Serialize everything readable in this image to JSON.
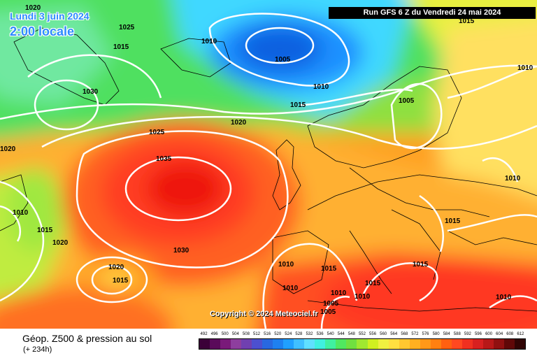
{
  "header": {
    "date_line1": "Lundi 3 juin 2024",
    "date_line2": "2:00 locale",
    "run": "Run GFS 6 Z du Vendredi 24 mai 2024"
  },
  "copyright": "Copyright © 2024 Meteociel.fr",
  "footer": {
    "title": "Géop. Z500 & pression au sol",
    "subtitle": "(+ 234h)"
  },
  "isobar_labels": [
    "1020",
    "1025",
    "1015",
    "1010",
    "1005",
    "1010",
    "1015",
    "1005",
    "1010",
    "1030",
    "1020",
    "1025",
    "1035",
    "1020",
    "1010",
    "1015",
    "1020",
    "1030",
    "1020",
    "1015",
    "1010",
    "1015",
    "1010",
    "1015",
    "1010",
    "1005",
    "1015",
    "1005",
    "1010",
    "1010",
    "1015",
    "1010",
    "1015"
  ],
  "scale": {
    "ticks": [
      "492",
      "496",
      "500",
      "504",
      "508",
      "512",
      "516",
      "520",
      "524",
      "528",
      "532",
      "536",
      "540",
      "544",
      "548",
      "552",
      "556",
      "560",
      "564",
      "568",
      "572",
      "576",
      "580",
      "584",
      "588",
      "592",
      "596",
      "600",
      "604",
      "608",
      "612"
    ],
    "colors": [
      "#3b0038",
      "#5a0a5a",
      "#7a1a7a",
      "#8e3e9e",
      "#7040b0",
      "#4c50d0",
      "#2868e0",
      "#1e80f0",
      "#20a0ff",
      "#40c0ff",
      "#60e0ff",
      "#40f0e0",
      "#40f0a0",
      "#50e860",
      "#70e040",
      "#a0e830",
      "#d0f020",
      "#f0f040",
      "#ffe040",
      "#ffc830",
      "#ffb020",
      "#ff9818",
      "#ff8010",
      "#ff6010",
      "#ff4820",
      "#f03020",
      "#d82020",
      "#b81818",
      "#901010",
      "#600808",
      "#300404"
    ]
  }
}
